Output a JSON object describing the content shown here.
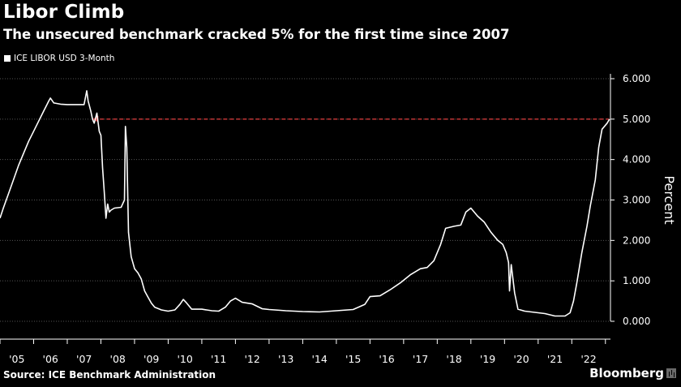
{
  "chart_data": {
    "type": "line",
    "title": "Libor Climb",
    "subtitle": "The unsecured benchmark cracked 5% for the first time since 2007",
    "ylabel": "Percent",
    "xlabel": "",
    "ylim": [
      0,
      6
    ],
    "yticks": [
      "0.000",
      "1.000",
      "2.000",
      "3.000",
      "4.000",
      "5.000",
      "6.000"
    ],
    "xlim": [
      2005.0,
      2023.15
    ],
    "xticks": [
      {
        "x": 2005.5,
        "label": "'05"
      },
      {
        "x": 2006.5,
        "label": "'06"
      },
      {
        "x": 2007.5,
        "label": "'07"
      },
      {
        "x": 2008.5,
        "label": "'08"
      },
      {
        "x": 2009.5,
        "label": "'09"
      },
      {
        "x": 2010.5,
        "label": "'10"
      },
      {
        "x": 2011.5,
        "label": "'11"
      },
      {
        "x": 2012.5,
        "label": "'12"
      },
      {
        "x": 2013.5,
        "label": "'13"
      },
      {
        "x": 2014.5,
        "label": "'14"
      },
      {
        "x": 2015.5,
        "label": "'15"
      },
      {
        "x": 2016.5,
        "label": "'16"
      },
      {
        "x": 2017.5,
        "label": "'17"
      },
      {
        "x": 2018.5,
        "label": "'18"
      },
      {
        "x": 2019.5,
        "label": "'19"
      },
      {
        "x": 2020.5,
        "label": "'20"
      },
      {
        "x": 2021.5,
        "label": "'21"
      },
      {
        "x": 2022.5,
        "label": "'22"
      }
    ],
    "grid": true,
    "legend": "top-left",
    "series": [
      {
        "name": "ICE LIBOR USD 3-Month",
        "color": "#ffffff",
        "points": [
          [
            2005.0,
            2.55
          ],
          [
            2005.1,
            2.8
          ],
          [
            2005.25,
            3.15
          ],
          [
            2005.4,
            3.5
          ],
          [
            2005.55,
            3.85
          ],
          [
            2005.7,
            4.15
          ],
          [
            2005.85,
            4.45
          ],
          [
            2006.0,
            4.7
          ],
          [
            2006.15,
            4.95
          ],
          [
            2006.3,
            5.2
          ],
          [
            2006.45,
            5.45
          ],
          [
            2006.5,
            5.52
          ],
          [
            2006.6,
            5.4
          ],
          [
            2006.8,
            5.37
          ],
          [
            2007.0,
            5.36
          ],
          [
            2007.3,
            5.36
          ],
          [
            2007.5,
            5.36
          ],
          [
            2007.58,
            5.7
          ],
          [
            2007.62,
            5.45
          ],
          [
            2007.7,
            5.2
          ],
          [
            2007.75,
            5.0
          ],
          [
            2007.8,
            4.9
          ],
          [
            2007.88,
            5.15
          ],
          [
            2007.95,
            4.7
          ],
          [
            2008.0,
            4.6
          ],
          [
            2008.05,
            3.8
          ],
          [
            2008.1,
            3.2
          ],
          [
            2008.15,
            2.55
          ],
          [
            2008.2,
            2.9
          ],
          [
            2008.25,
            2.7
          ],
          [
            2008.3,
            2.75
          ],
          [
            2008.4,
            2.8
          ],
          [
            2008.6,
            2.82
          ],
          [
            2008.7,
            3.0
          ],
          [
            2008.73,
            4.82
          ],
          [
            2008.77,
            4.3
          ],
          [
            2008.82,
            2.2
          ],
          [
            2008.9,
            1.6
          ],
          [
            2009.0,
            1.3
          ],
          [
            2009.1,
            1.2
          ],
          [
            2009.2,
            1.05
          ],
          [
            2009.3,
            0.75
          ],
          [
            2009.4,
            0.6
          ],
          [
            2009.5,
            0.45
          ],
          [
            2009.6,
            0.35
          ],
          [
            2009.8,
            0.28
          ],
          [
            2010.0,
            0.25
          ],
          [
            2010.2,
            0.28
          ],
          [
            2010.35,
            0.42
          ],
          [
            2010.45,
            0.54
          ],
          [
            2010.55,
            0.45
          ],
          [
            2010.7,
            0.3
          ],
          [
            2011.0,
            0.3
          ],
          [
            2011.3,
            0.26
          ],
          [
            2011.5,
            0.25
          ],
          [
            2011.7,
            0.35
          ],
          [
            2011.85,
            0.5
          ],
          [
            2012.0,
            0.57
          ],
          [
            2012.2,
            0.47
          ],
          [
            2012.5,
            0.43
          ],
          [
            2012.8,
            0.31
          ],
          [
            2013.0,
            0.29
          ],
          [
            2013.5,
            0.26
          ],
          [
            2014.0,
            0.24
          ],
          [
            2014.5,
            0.23
          ],
          [
            2015.0,
            0.26
          ],
          [
            2015.5,
            0.29
          ],
          [
            2015.85,
            0.42
          ],
          [
            2016.0,
            0.61
          ],
          [
            2016.3,
            0.63
          ],
          [
            2016.6,
            0.78
          ],
          [
            2016.9,
            0.95
          ],
          [
            2017.2,
            1.15
          ],
          [
            2017.5,
            1.3
          ],
          [
            2017.7,
            1.33
          ],
          [
            2017.9,
            1.5
          ],
          [
            2018.1,
            1.9
          ],
          [
            2018.25,
            2.3
          ],
          [
            2018.5,
            2.35
          ],
          [
            2018.7,
            2.38
          ],
          [
            2018.85,
            2.7
          ],
          [
            2019.0,
            2.8
          ],
          [
            2019.2,
            2.6
          ],
          [
            2019.4,
            2.45
          ],
          [
            2019.6,
            2.2
          ],
          [
            2019.8,
            2.0
          ],
          [
            2019.95,
            1.9
          ],
          [
            2020.05,
            1.7
          ],
          [
            2020.12,
            1.45
          ],
          [
            2020.15,
            0.75
          ],
          [
            2020.2,
            1.4
          ],
          [
            2020.3,
            0.7
          ],
          [
            2020.4,
            0.3
          ],
          [
            2020.6,
            0.25
          ],
          [
            2020.9,
            0.22
          ],
          [
            2021.2,
            0.19
          ],
          [
            2021.5,
            0.13
          ],
          [
            2021.8,
            0.13
          ],
          [
            2021.95,
            0.21
          ],
          [
            2022.05,
            0.5
          ],
          [
            2022.15,
            0.95
          ],
          [
            2022.3,
            1.7
          ],
          [
            2022.45,
            2.35
          ],
          [
            2022.55,
            2.85
          ],
          [
            2022.7,
            3.5
          ],
          [
            2022.8,
            4.3
          ],
          [
            2022.9,
            4.75
          ],
          [
            2023.0,
            4.85
          ],
          [
            2023.05,
            4.9
          ],
          [
            2023.12,
            5.0
          ]
        ]
      }
    ],
    "annotation": {
      "type": "dashed-reference-line",
      "y": 5.0,
      "x_start": 2007.78,
      "x_end": 2023.1,
      "color": "#d23a3a"
    },
    "source": "Source: ICE Benchmark Administration",
    "brand": "Bloomberg"
  }
}
